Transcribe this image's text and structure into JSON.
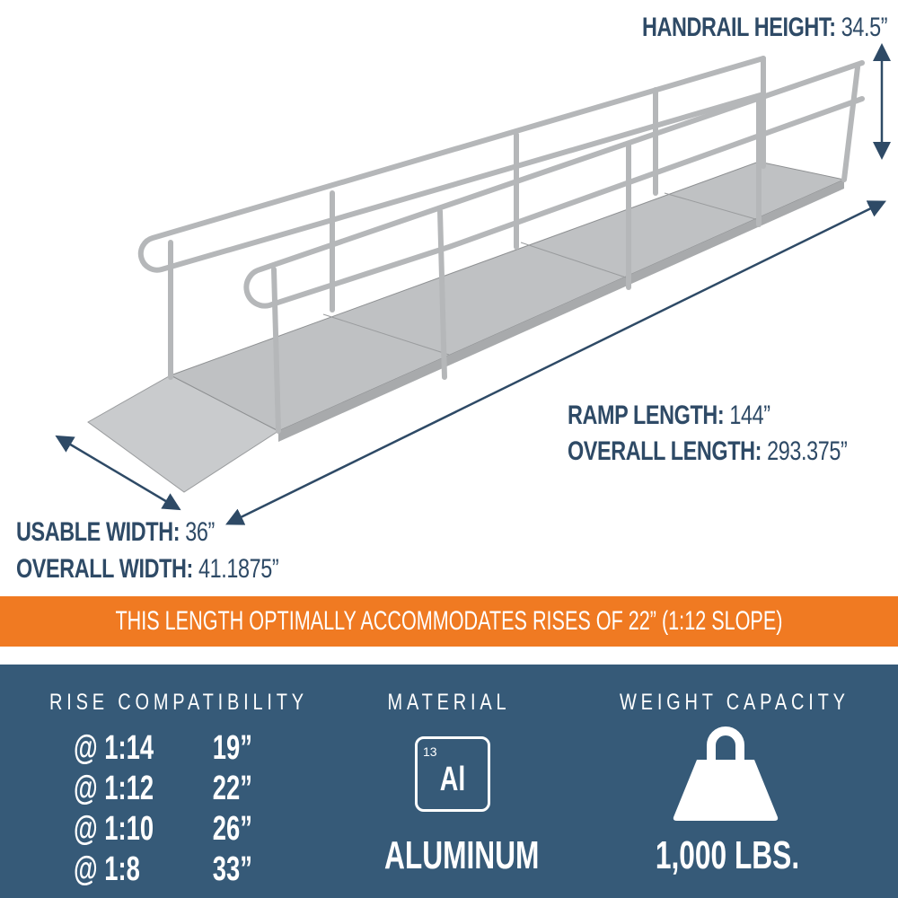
{
  "dimensions": {
    "handrail_height": {
      "label": "HANDRAIL HEIGHT:",
      "value": "34.5”"
    },
    "ramp_length": {
      "label": "RAMP LENGTH:",
      "value": "144”"
    },
    "overall_length": {
      "label": "OVERALL LENGTH:",
      "value": "293.375”"
    },
    "usable_width": {
      "label": "USABLE WIDTH:",
      "value": "36”"
    },
    "overall_width": {
      "label": "OVERALL WIDTH:",
      "value": "41.1875”"
    }
  },
  "banner": "THIS LENGTH OPTIMALLY ACCOMMODATES RISES OF 22” (1:12 SLOPE)",
  "rise": {
    "title": "RISE COMPATIBILITY",
    "rows": [
      {
        "ratio": "@ 1:14",
        "rise": "19”"
      },
      {
        "ratio": "@ 1:12",
        "rise": "22”"
      },
      {
        "ratio": "@ 1:10",
        "rise": "26”"
      },
      {
        "ratio": "@ 1:8",
        "rise": "33”"
      }
    ]
  },
  "material": {
    "title": "MATERIAL",
    "atomic_number": "13",
    "symbol": "Al",
    "name": "ALUMINUM"
  },
  "weight": {
    "title": "WEIGHT CAPACITY",
    "icon": "weight-icon",
    "value": "1,000 LBS."
  },
  "colors": {
    "text": "#2e4a66",
    "orange": "#f07a22",
    "panel": "#365a78"
  }
}
